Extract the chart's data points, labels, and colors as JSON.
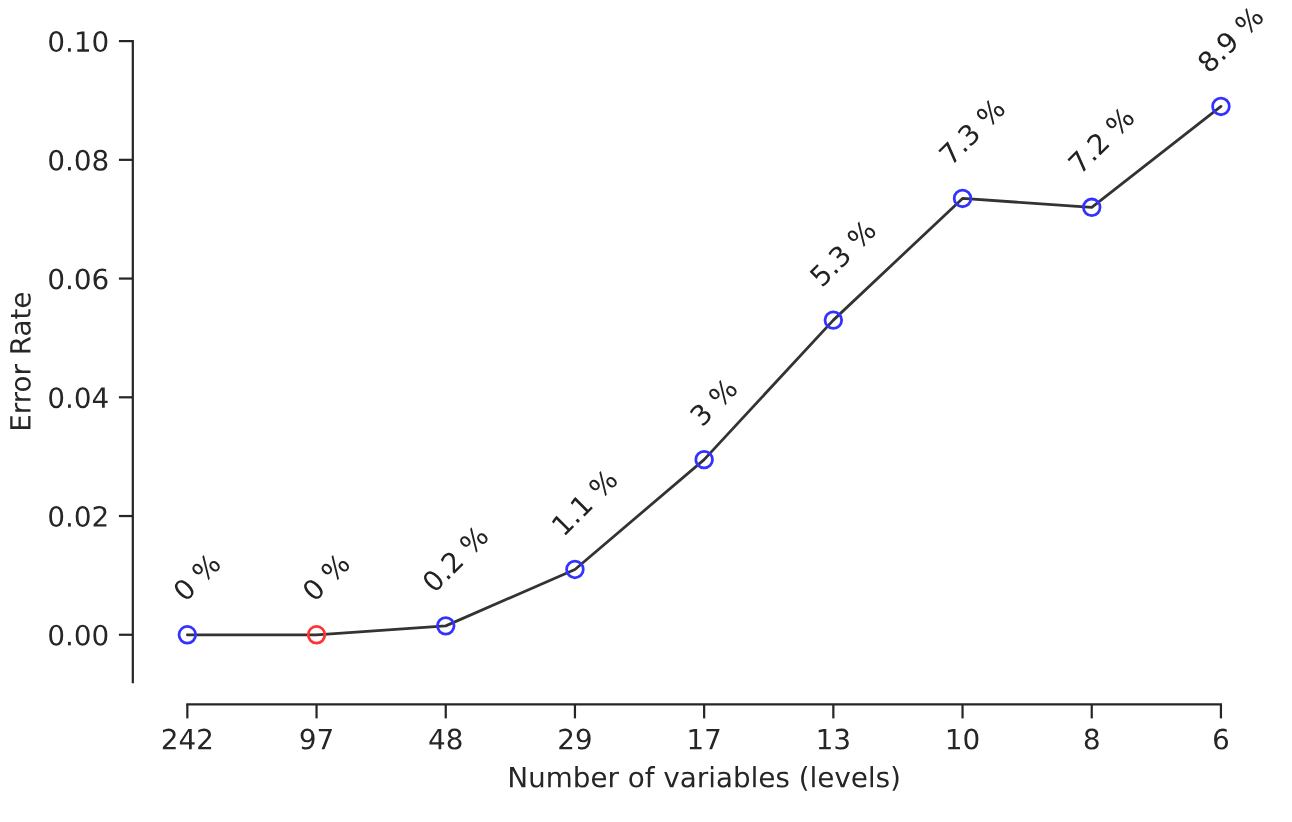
{
  "chart_data": {
    "type": "line",
    "xlabel": "Number of variables (levels)",
    "ylabel": "Error Rate",
    "categories": [
      "242",
      "97",
      "48",
      "29",
      "17",
      "13",
      "10",
      "8",
      "6"
    ],
    "series": [
      {
        "color": "#333333",
        "colors": [
          "#3333ff",
          "#ff3333",
          "#3333ff",
          "#3333ff",
          "#3333ff",
          "#3333ff",
          "#3333ff",
          "#3333ff",
          "#3333ff"
        ],
        "values": [
          0,
          0,
          0.0015,
          0.011,
          0.0295,
          0.053,
          0.0735,
          0.072,
          0.089
        ],
        "value_labels": [
          "0 %",
          "0 %",
          "0.2 %",
          "1.1 %",
          "3 %",
          "5.3 %",
          "7.3 %",
          "7.2 %",
          "8.9 %"
        ]
      }
    ],
    "ylim": [
      -0.008,
      0.1
    ],
    "yticks": [
      {
        "value": 0,
        "label": "0.00"
      },
      {
        "value": 0.02,
        "label": "0.02"
      },
      {
        "value": 0.04,
        "label": "0.04"
      },
      {
        "value": 0.06,
        "label": "0.06"
      },
      {
        "value": 0.08,
        "label": "0.08"
      },
      {
        "value": 0.1,
        "label": "0.10"
      }
    ],
    "marker": "circle",
    "line_style": "solid",
    "grid": false,
    "legend": false
  }
}
